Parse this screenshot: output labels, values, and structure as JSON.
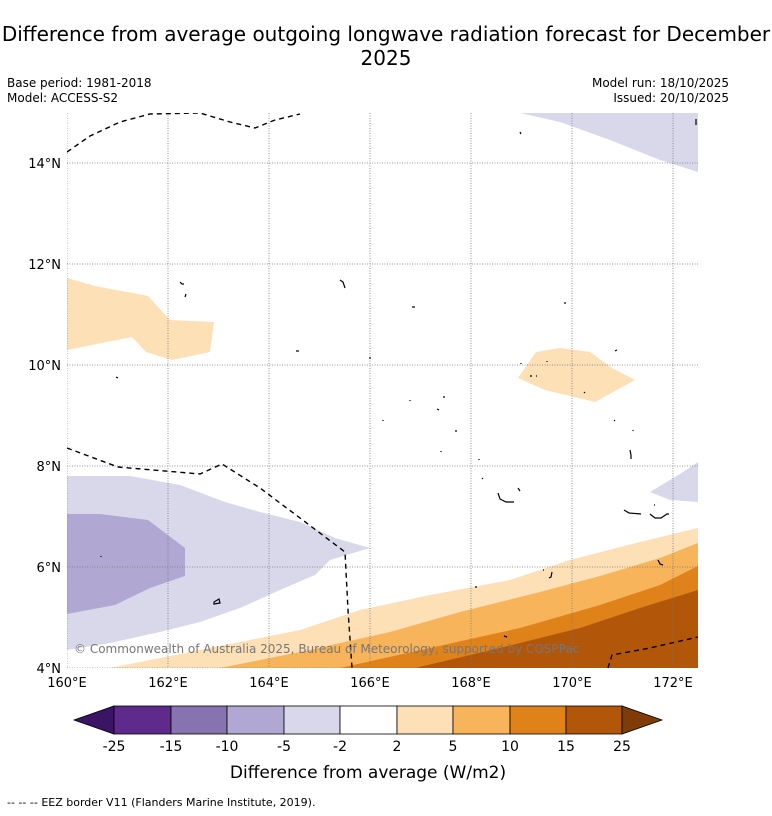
{
  "title": "Difference from average outgoing longwave radiation forecast for December 2025",
  "meta": {
    "base_period": "Base period: 1981-2018",
    "model": "Model: ACCESS-S2",
    "model_run": "Model run: 18/10/2025",
    "issued": "Issued: 20/10/2025"
  },
  "axes": {
    "lon_ticks": [
      "160°E",
      "162°E",
      "164°E",
      "166°E",
      "168°E",
      "170°E",
      "172°E"
    ],
    "lat_ticks": [
      "4°N",
      "6°N",
      "8°N",
      "10°N",
      "12°N",
      "14°N"
    ]
  },
  "colorbar": {
    "title": "Difference from average (W/m2)",
    "labels": [
      "-25",
      "-15",
      "-10",
      "-5",
      "-2",
      "2",
      "5",
      "10",
      "15",
      "25"
    ],
    "colors": [
      "#3b1466",
      "#5e2a8c",
      "#8673b0",
      "#b0a8d2",
      "#d8d8ea",
      "#ffffff",
      "#fde0b6",
      "#f8b45a",
      "#e0821a",
      "#b2560a",
      "#7f3b08"
    ]
  },
  "copyright": "© Commonwealth of Australia 2025, Bureau of Meteorology, supported by COSPPac",
  "legend": {
    "line_symbol": "-- -- --",
    "eez_text": "EEZ border V11 (Flanders Marine Institute, 2019)."
  }
}
